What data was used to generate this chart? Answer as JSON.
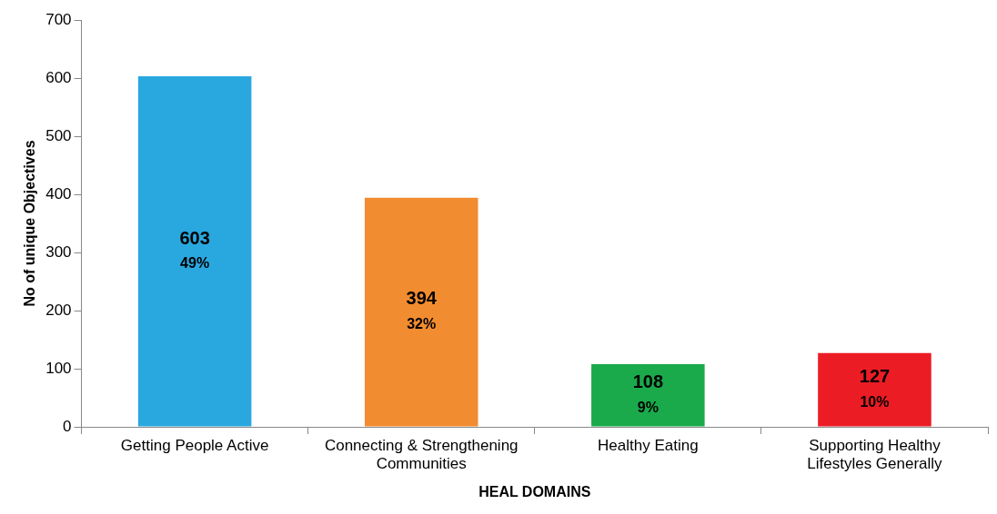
{
  "chart_data": {
    "type": "bar",
    "xlabel": "HEAL DOMAINS",
    "ylabel": "No of unique Objectives",
    "categories": [
      "Getting People Active",
      "Connecting & Strengthening Communities",
      "Healthy Eating",
      "Supporting Healthy Lifestyles Generally"
    ],
    "values": [
      603,
      394,
      108,
      127
    ],
    "value_labels": [
      "603 49%",
      "394 32%",
      "108 9%",
      "127 10%"
    ],
    "colors": [
      "#29a8e0",
      "#f28c30",
      "#1aaa4b",
      "#ec1c24"
    ],
    "ylim": [
      0,
      700
    ],
    "yticks": [
      0,
      100,
      200,
      300,
      400,
      500,
      600,
      700
    ],
    "grid": false,
    "legend": false
  }
}
